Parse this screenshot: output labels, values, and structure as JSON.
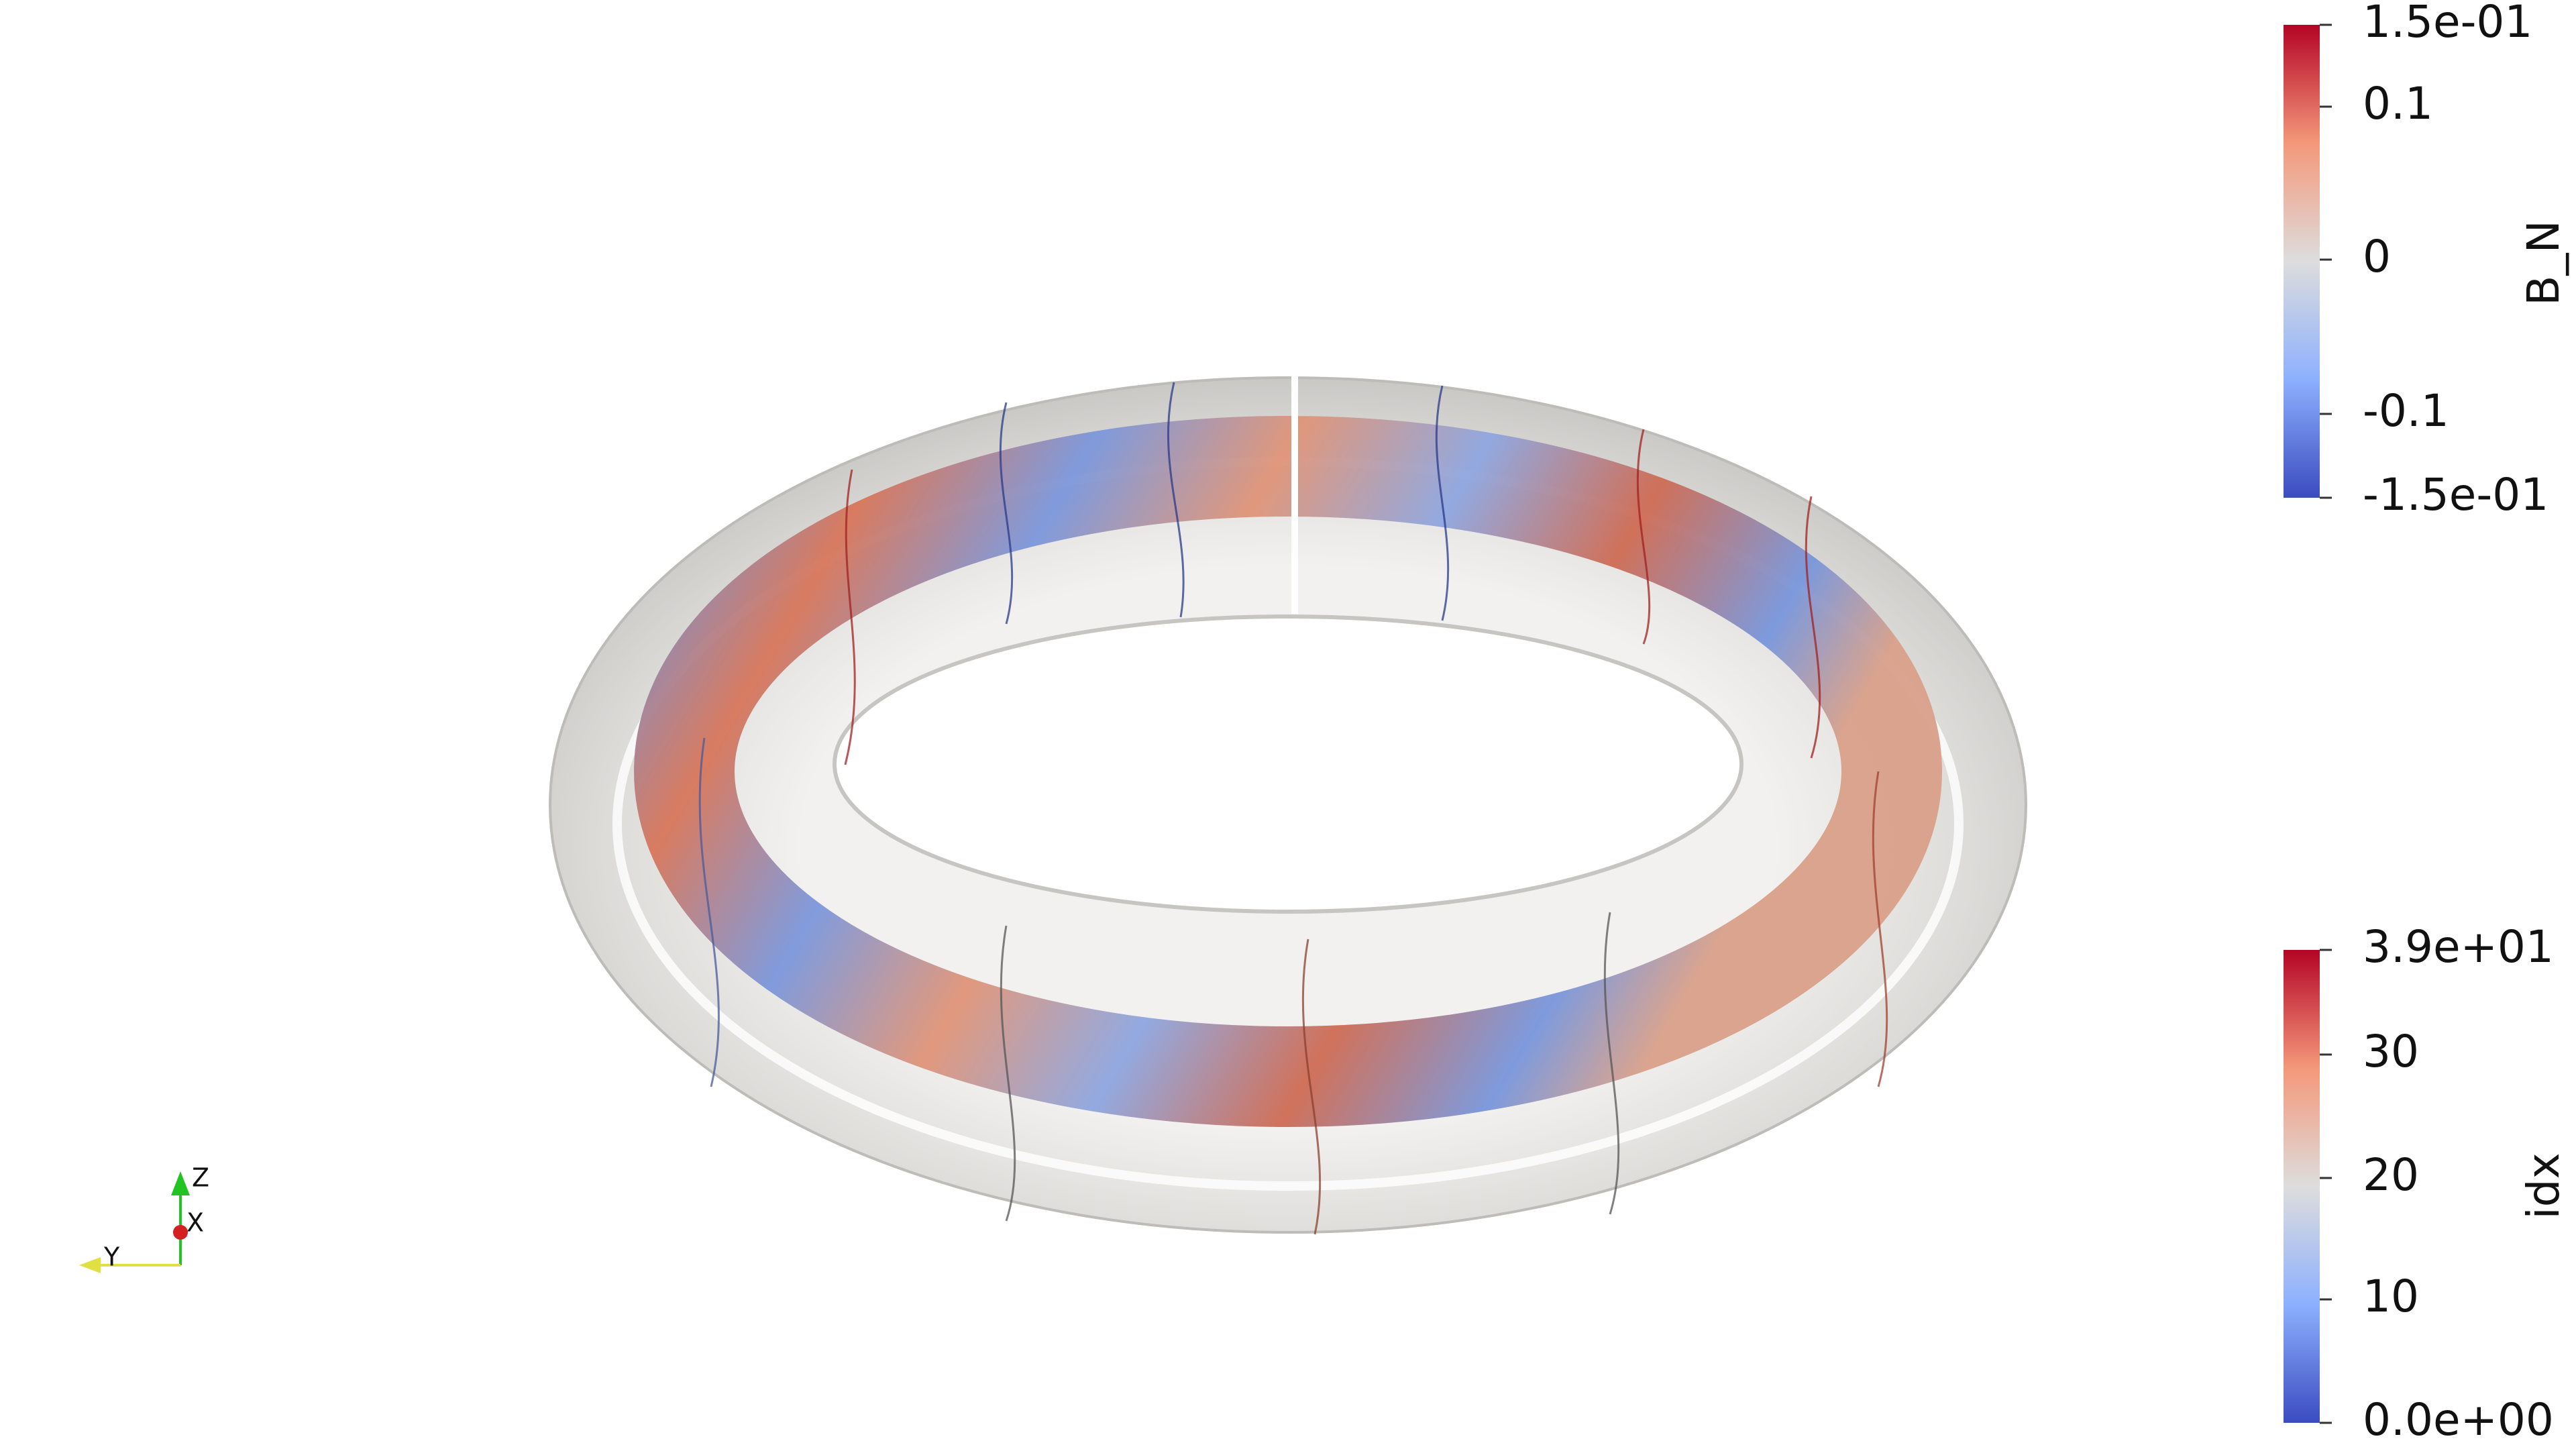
{
  "colorbars": [
    {
      "title": "B_N",
      "labels": [
        "1.5e-01",
        "0.1",
        "0",
        "-0.1",
        "-1.5e-01"
      ]
    },
    {
      "title": "idx",
      "labels": [
        "3.9e+01",
        "30",
        "20",
        "10",
        "0.0e+00"
      ]
    }
  ],
  "orientation_axes": {
    "labels": [
      "Z",
      "X",
      "Y"
    ]
  }
}
